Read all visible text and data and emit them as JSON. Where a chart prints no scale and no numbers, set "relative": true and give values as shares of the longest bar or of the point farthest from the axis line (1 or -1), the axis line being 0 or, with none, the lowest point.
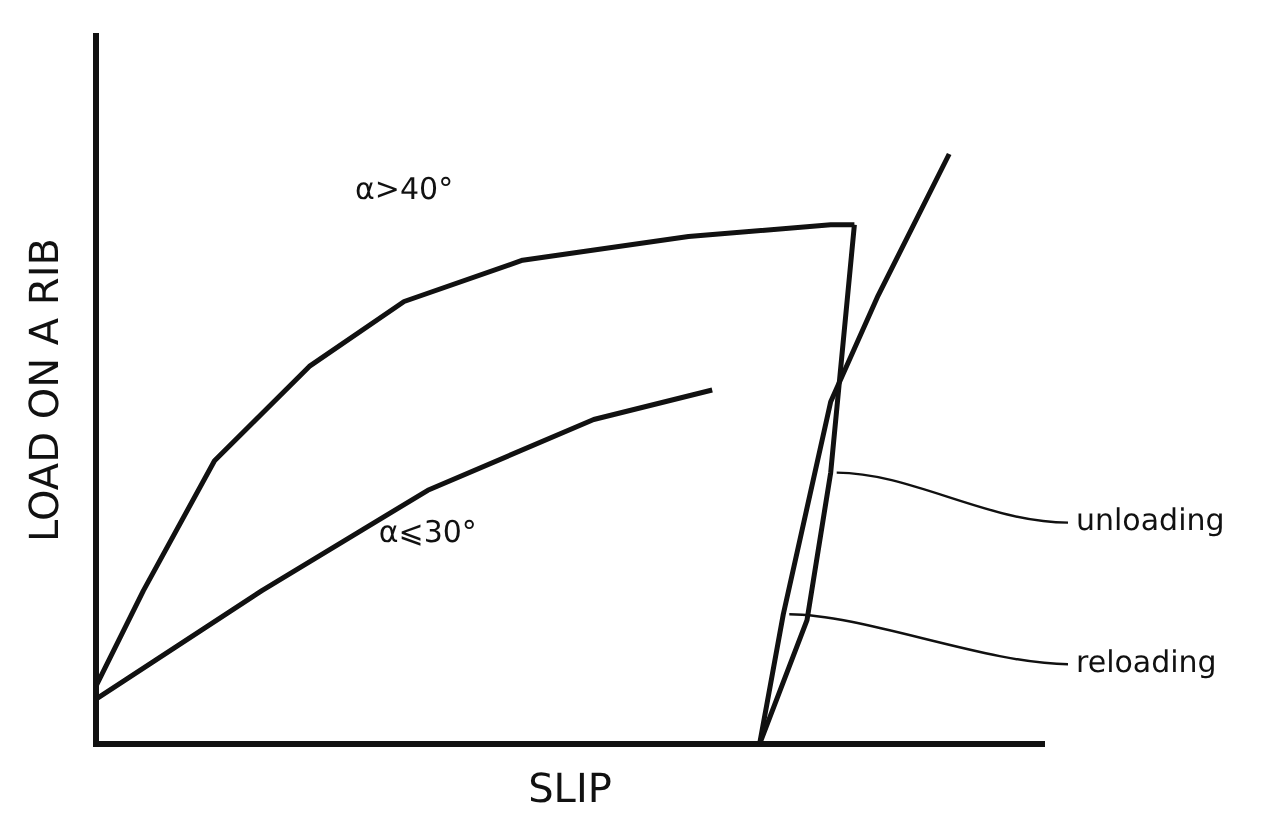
{
  "chart_data": {
    "type": "line",
    "relative": true,
    "xlabel": "SLIP",
    "ylabel": "LOAD ON A RIB",
    "legend": false,
    "grid": false,
    "marker": "none",
    "categories": [
      null,
      null,
      null,
      null,
      null,
      null,
      null,
      null,
      null,
      null,
      null,
      null,
      null,
      null,
      null,
      null,
      null,
      null,
      null,
      null,
      null,
      null,
      null,
      null,
      null,
      null,
      null,
      null,
      null,
      null,
      null,
      null,
      null,
      null,
      null,
      null,
      null,
      null,
      null,
      null,
      null
    ],
    "series": [
      {
        "color": "#111111",
        "values": [
          0.098,
          null,
          0.26,
          null,
          null,
          0.48,
          null,
          null,
          null,
          0.64,
          null,
          null,
          null,
          0.75,
          null,
          null,
          null,
          null,
          0.82,
          null,
          null,
          null,
          null,
          null,
          null,
          0.86,
          null,
          null,
          null,
          null,
          null,
          0.88,
          0.88,
          null,
          null,
          null,
          null,
          null,
          null,
          null,
          null
        ]
      },
      {
        "color": "#111111",
        "values": [
          0.076,
          null,
          null,
          null,
          null,
          null,
          null,
          0.26,
          null,
          null,
          null,
          null,
          null,
          null,
          0.43,
          null,
          null,
          null,
          null,
          null,
          null,
          0.55,
          null,
          null,
          null,
          null,
          0.6,
          null,
          null,
          null,
          null,
          null,
          null,
          null,
          null,
          null,
          null,
          null,
          null,
          null,
          null
        ]
      },
      {
        "color": "#111111",
        "values": [
          null,
          null,
          null,
          null,
          null,
          null,
          null,
          null,
          null,
          null,
          null,
          null,
          null,
          null,
          null,
          null,
          null,
          null,
          null,
          null,
          null,
          null,
          null,
          null,
          null,
          null,
          null,
          null,
          0,
          null,
          0.21,
          0.46,
          0.88,
          null,
          null,
          null,
          null,
          null,
          null,
          null,
          null
        ]
      },
      {
        "color": "#111111",
        "values": [
          null,
          null,
          null,
          null,
          null,
          null,
          null,
          null,
          null,
          null,
          null,
          null,
          null,
          null,
          null,
          null,
          null,
          null,
          null,
          null,
          null,
          null,
          null,
          null,
          null,
          null,
          null,
          null,
          0,
          0.22,
          null,
          0.58,
          null,
          0.76,
          null,
          null,
          1,
          null,
          null,
          null,
          null
        ]
      }
    ],
    "annotations": [
      "α>40°",
      "α⩽30°",
      "unloading",
      "reloading"
    ]
  }
}
